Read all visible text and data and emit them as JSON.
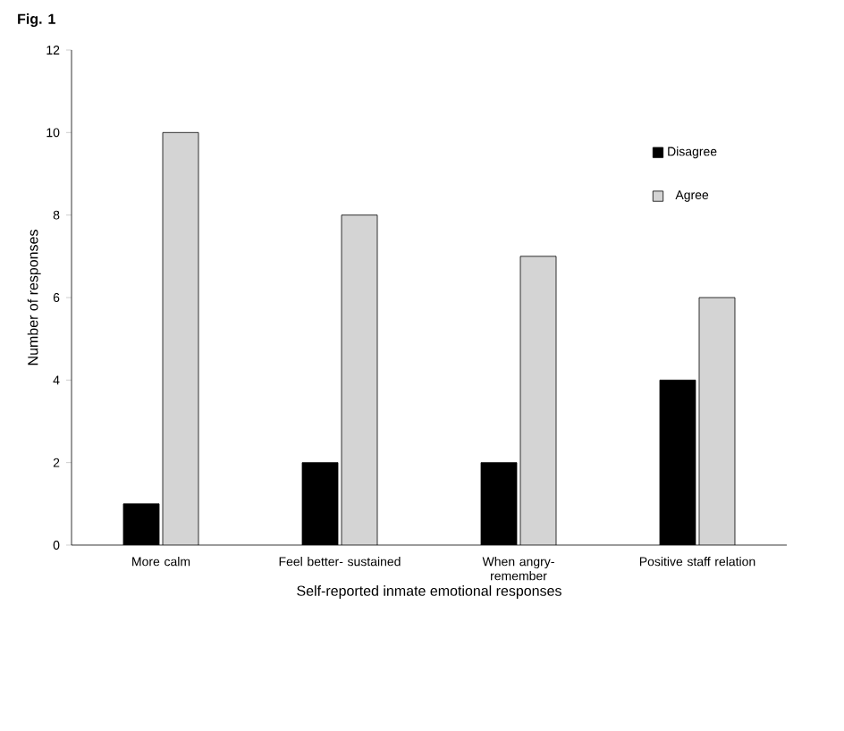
{
  "chart_data": {
    "type": "bar",
    "title": "Fig. 1",
    "xlabel": "Self-reported  inmate emotional responses",
    "ylabel": "Number of responses",
    "categories": [
      "More calm",
      "Feel better- sustained",
      "When angry- remember",
      "Positive staff relation"
    ],
    "series": [
      {
        "name": "Disagree",
        "color": "#000000",
        "values": [
          1,
          2,
          2,
          4
        ]
      },
      {
        "name": "Agree",
        "color": "#d4d4d4",
        "values": [
          10,
          8,
          7,
          6
        ]
      }
    ],
    "ylim": [
      0,
      12
    ],
    "yticks": [
      0,
      2,
      4,
      6,
      8,
      10,
      12
    ],
    "grid": false,
    "legend": "right"
  }
}
